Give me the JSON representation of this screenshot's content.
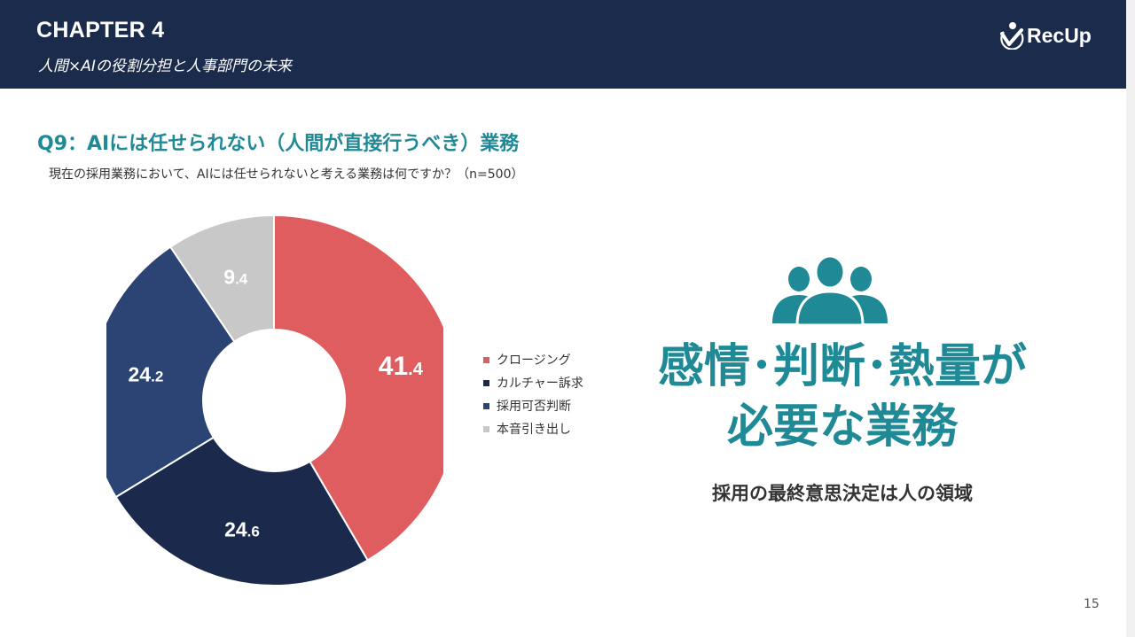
{
  "header": {
    "chapter": "CHAPTER 4",
    "subtitle": "人間×AIの役割分担と人事部門の未来",
    "logo_text": "RecUp"
  },
  "question": {
    "title": "Q9：AIには任せられない（人間が直接行うべき）業務",
    "text": "現在の採用業務において、AIには任せられないと考える業務は何ですか？（n=500）"
  },
  "chart_data": {
    "type": "pie",
    "donut": true,
    "categories": [
      "クロージング",
      "カルチャー訴求",
      "採用可否判断",
      "本音引き出し"
    ],
    "values": [
      41.4,
      24.6,
      24.2,
      9.4
    ],
    "labels": [
      {
        "int": "41",
        "dec": ".4"
      },
      {
        "int": "24",
        "dec": ".6"
      },
      {
        "int": "24",
        "dec": ".2"
      },
      {
        "int": "9",
        "dec": ".4"
      }
    ],
    "colors": [
      "#e05d5f",
      "#1b2a4c",
      "#2c4473",
      "#c8c8c8"
    ],
    "label_colors": [
      "#ffffff",
      "#ffffff",
      "#ffffff",
      "#ffffff"
    ],
    "legend_colors": [
      "#e05d5f",
      "#1b2a4c",
      "#2c4473",
      "#c8c8c8"
    ],
    "legend_position": "right"
  },
  "callout": {
    "icon": "people-group-icon",
    "headline_line1": "感情･判断･熱量が",
    "headline_line2": "必要な業務",
    "subtext": "採用の最終意思決定は人の領域"
  },
  "page_number": "15",
  "colors": {
    "header_bg": "#1b2b4b",
    "accent": "#1f8a96"
  }
}
